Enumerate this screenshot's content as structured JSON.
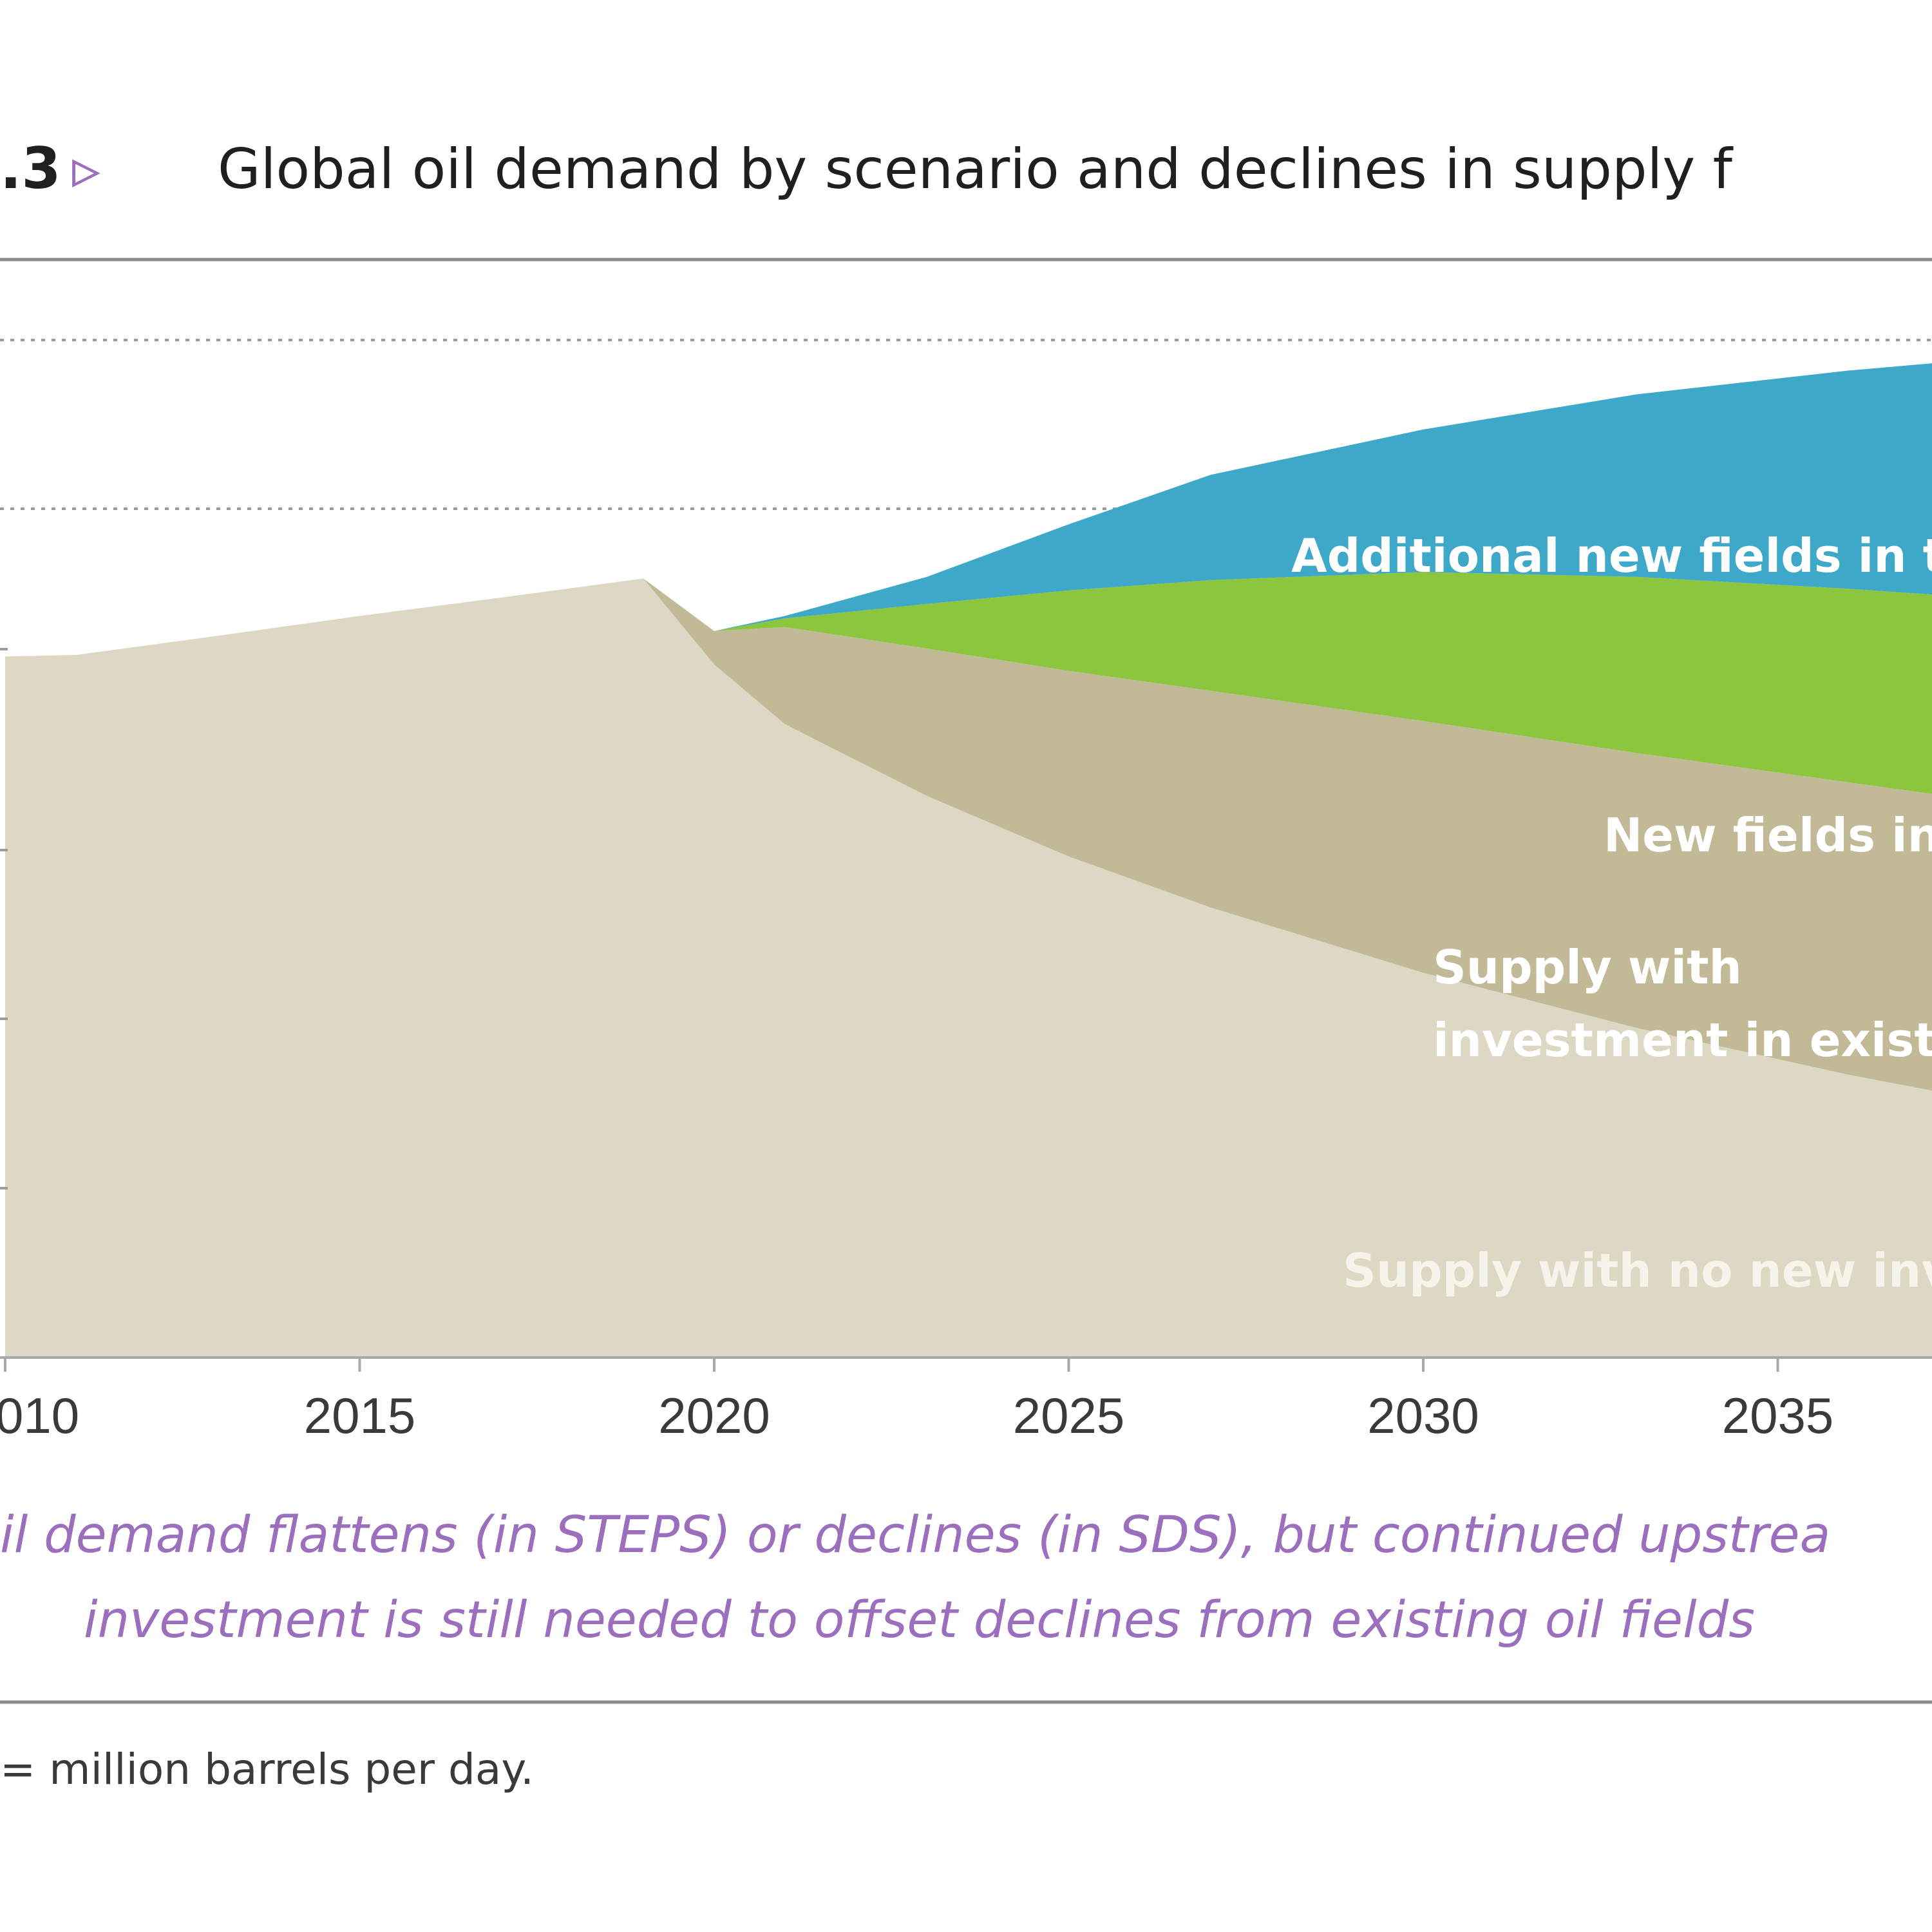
{
  "figure": {
    "number": ".3",
    "arrow": "▹",
    "title": "Global oil demand by scenario and declines in supply f",
    "caption_line1": "il demand flattens (in STEPS) or declines (in SDS), but continued upstrea",
    "caption_line2": "investment is still needed to offset declines from existing oil fields",
    "note": "= million barrels per day."
  },
  "colors": {
    "additional_new_fields": "#3ea8c8",
    "new_fields": "#8cc63f",
    "existing_investment": "#c2b996",
    "no_new_investment": "#ddd8c4",
    "caption": "#9b6fbd"
  },
  "chart_data": {
    "type": "area",
    "stacked": true,
    "x_tick_labels": [
      "010",
      "2015",
      "2020",
      "2025",
      "2030",
      "2035"
    ],
    "x": [
      2010,
      2011,
      2013,
      2015,
      2017,
      2019,
      2020,
      2021,
      2023,
      2025,
      2027,
      2030,
      2033,
      2036,
      2037.3
    ],
    "series": [
      {
        "name": "Supply with no new inve",
        "color_key": "no_new_investment",
        "values": [
          88,
          88.2,
          90.6,
          93.1,
          95.4,
          97.8,
          87,
          79.5,
          70.5,
          62.9,
          56.5,
          48.3,
          41.4,
          35.5,
          33.3
        ]
      },
      {
        "name": "Supply with investment in existin",
        "color_key": "existing_investment",
        "values": [
          0,
          0,
          0,
          0,
          0,
          0,
          4.2,
          12.2,
          18.5,
          23.3,
          27.2,
          31.6,
          34.5,
          36.7,
          37.3
        ]
      },
      {
        "name": "New fields in",
        "color_key": "new_fields",
        "values": [
          0,
          0,
          0,
          0,
          0,
          0,
          0,
          1.1,
          5.6,
          10.1,
          13.9,
          18.7,
          22.1,
          24.3,
          25.1
        ]
      },
      {
        "name": "Additional new fields in th",
        "color_key": "additional_new_fields",
        "values": [
          0,
          0,
          0,
          0,
          0,
          0,
          0,
          0.3,
          3.4,
          8.3,
          13.2,
          17.9,
          22.9,
          27.4,
          29.2
        ]
      }
    ],
    "area_labels": {
      "additional": "Additional new fields in th",
      "new_fields": "New fields in",
      "existing_line1": "Supply with",
      "existing_line2": "investment in existin",
      "no_new": "Supply with no new inve"
    },
    "xlim": [
      2010,
      2037.3
    ],
    "ylim": [
      0,
      120
    ],
    "grid": "dotted horizontal"
  }
}
